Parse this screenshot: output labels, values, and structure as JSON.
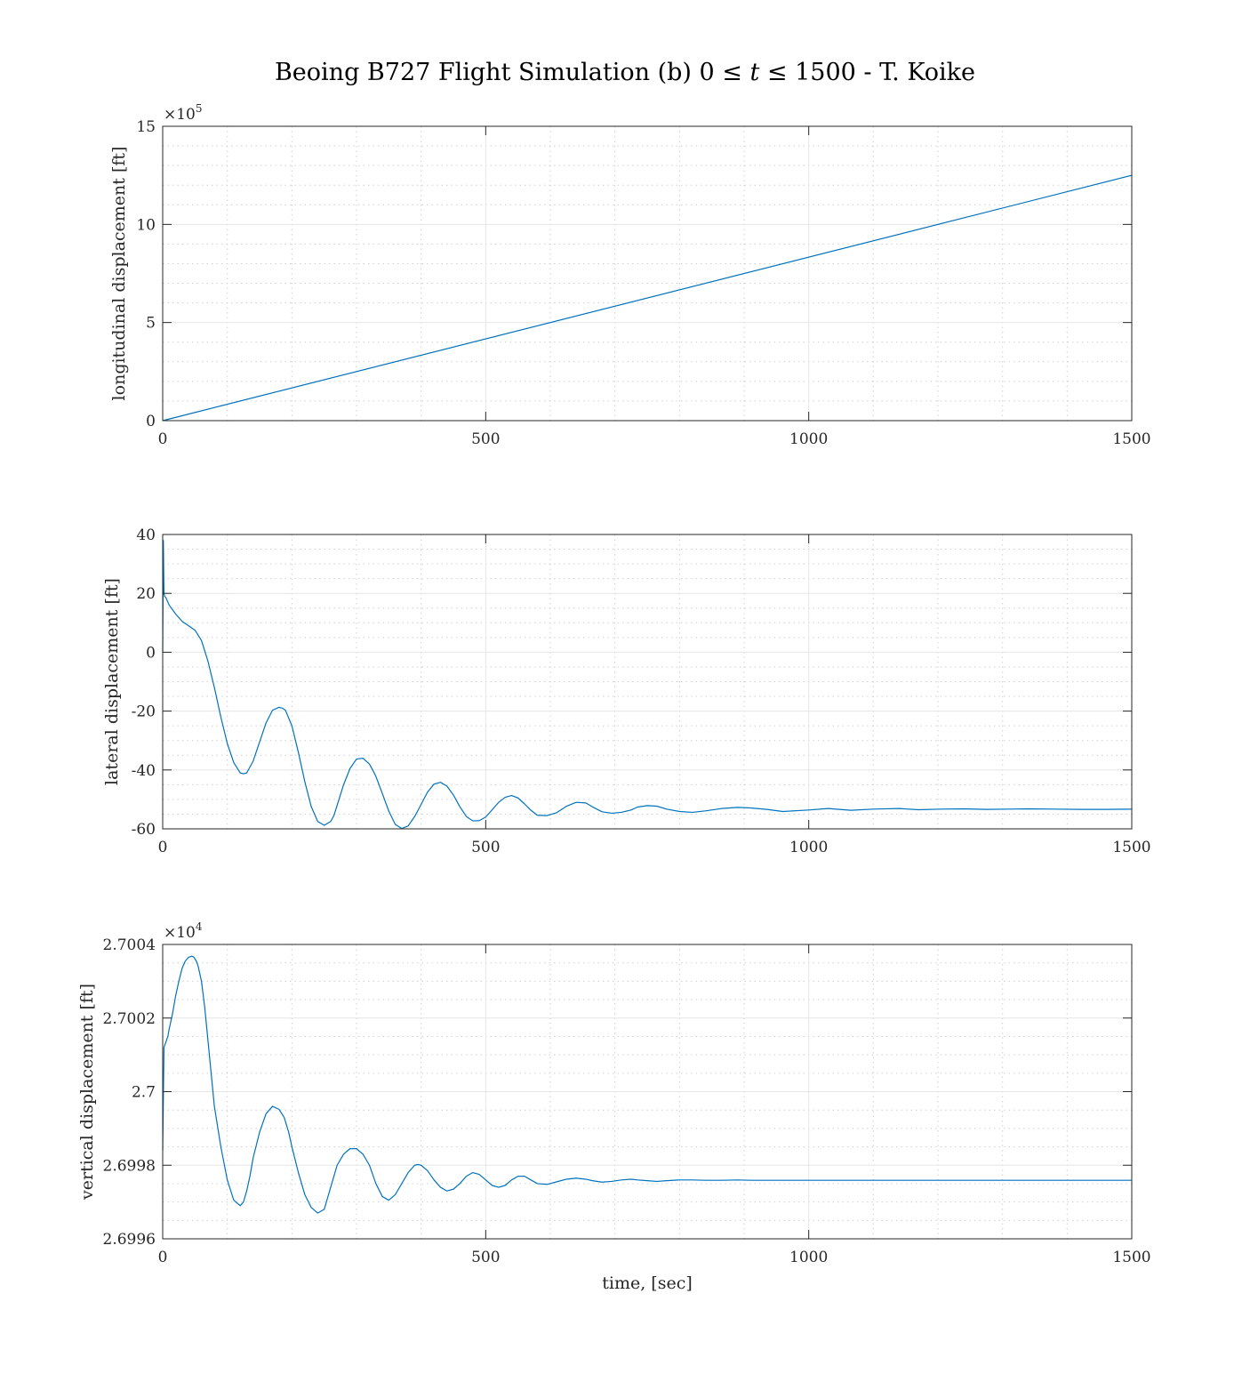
{
  "figure": {
    "title_pre": "Beoing B727 Flight Simulation (b) 0 ≤ ",
    "title_var": "t",
    "title_post": " ≤ 1500 - T. Koike",
    "line_color": "#0072BD",
    "grid_color": "#e6e6e6"
  },
  "chart_data": [
    {
      "type": "line",
      "title": "",
      "xlabel": "",
      "ylabel": "longitudinal displacement [ft]",
      "xlim": [
        0,
        1500
      ],
      "ylim": [
        0,
        1500000
      ],
      "x_ticks": [
        0,
        500,
        1000,
        1500
      ],
      "x_tick_labels": [
        "0",
        "500",
        "1000",
        "1500"
      ],
      "y_ticks": [
        0,
        500000,
        1000000,
        1500000
      ],
      "y_tick_labels": [
        "0",
        "5",
        "10",
        "15"
      ],
      "exponent_label_base": "×10",
      "exponent_label_power": "5",
      "grid": true,
      "minor_grid": true,
      "series": [
        {
          "x": [
            0,
            1500
          ],
          "y": [
            0,
            1250000
          ]
        }
      ]
    },
    {
      "type": "line",
      "title": "",
      "xlabel": "",
      "ylabel": "lateral displacement [ft]",
      "xlim": [
        0,
        1500
      ],
      "ylim": [
        -60,
        40
      ],
      "x_ticks": [
        0,
        500,
        1000,
        1500
      ],
      "x_tick_labels": [
        "0",
        "500",
        "1000",
        "1500"
      ],
      "y_ticks": [
        -60,
        -40,
        -20,
        0,
        20,
        40
      ],
      "y_tick_labels": [
        "-60",
        "-40",
        "-20",
        "0",
        "20",
        "40"
      ],
      "exponent_label_base": "",
      "exponent_label_power": "",
      "grid": true,
      "minor_grid": true,
      "series": [
        {
          "x": [
            0,
            1,
            2,
            3,
            5,
            10,
            20,
            30,
            40,
            50,
            60,
            70,
            80,
            90,
            100,
            110,
            120,
            125,
            130,
            140,
            150,
            160,
            170,
            180,
            185,
            190,
            200,
            210,
            220,
            230,
            240,
            250,
            260,
            265,
            270,
            280,
            290,
            300,
            310,
            320,
            325,
            330,
            340,
            350,
            360,
            370,
            380,
            390,
            395,
            400,
            410,
            420,
            430,
            440,
            450,
            460,
            470,
            480,
            490,
            500,
            510,
            520,
            530,
            540,
            550,
            560,
            570,
            580,
            595,
            610,
            625,
            640,
            655,
            665,
            680,
            695,
            710,
            725,
            735,
            750,
            765,
            780,
            800,
            820,
            840,
            865,
            890,
            910,
            935,
            960,
            1000,
            1030,
            1065,
            1100,
            1140,
            1170,
            1205,
            1240,
            1275,
            1310,
            1340,
            1380,
            1420,
            1460,
            1500
          ],
          "y": [
            0,
            38,
            20,
            19,
            18.5,
            16,
            13,
            10.5,
            9,
            7.5,
            4,
            -3,
            -12,
            -22,
            -31,
            -37.5,
            -41,
            -41.3,
            -41,
            -37,
            -30.5,
            -24,
            -19.7,
            -18.7,
            -19,
            -19.7,
            -25,
            -34,
            -44,
            -52.5,
            -57.5,
            -58.8,
            -57.5,
            -55.5,
            -52,
            -45,
            -39.5,
            -36.3,
            -36,
            -38,
            -40,
            -42.2,
            -48,
            -54,
            -58.5,
            -59.9,
            -59,
            -55.8,
            -53.8,
            -51.7,
            -47.5,
            -44.8,
            -44.2,
            -45.5,
            -48.5,
            -52.5,
            -55.8,
            -57.3,
            -57.2,
            -56,
            -53.5,
            -51,
            -49.3,
            -48.7,
            -49.5,
            -51.5,
            -53.7,
            -55.4,
            -55.5,
            -54.5,
            -52.3,
            -51,
            -51.2,
            -52.5,
            -54.2,
            -54.7,
            -54.4,
            -53.6,
            -52.6,
            -52.1,
            -52.3,
            -53.3,
            -54.1,
            -54.4,
            -53.9,
            -53.1,
            -52.7,
            -52.9,
            -53.4,
            -54.1,
            -53.6,
            -53.1,
            -53.7,
            -53.3,
            -53.1,
            -53.5,
            -53.3,
            -53.2,
            -53.4,
            -53.3,
            -53.2,
            -53.3,
            -53.4,
            -53.4,
            -53.3
          ]
        }
      ]
    },
    {
      "type": "line",
      "title": "",
      "xlabel": "time, [sec]",
      "ylabel": "vertical displacement [ft]",
      "xlim": [
        0,
        1500
      ],
      "ylim": [
        26996,
        27004
      ],
      "x_ticks": [
        0,
        500,
        1000,
        1500
      ],
      "x_tick_labels": [
        "0",
        "500",
        "1000",
        "1500"
      ],
      "y_ticks": [
        26996,
        26998,
        27000,
        27002,
        27004
      ],
      "y_tick_labels": [
        "2.6996",
        "2.6998",
        "2.7",
        "2.7002",
        "2.7004"
      ],
      "exponent_label_base": "×10",
      "exponent_label_power": "4",
      "grid": true,
      "minor_grid": true,
      "series": [
        {
          "x": [
            0,
            2,
            4,
            6,
            8,
            10,
            15,
            20,
            25,
            30,
            35,
            40,
            45,
            48,
            52,
            55,
            60,
            65,
            70,
            75,
            80,
            90,
            100,
            110,
            120,
            125,
            130,
            135,
            140,
            150,
            160,
            170,
            180,
            188,
            195,
            200,
            210,
            220,
            230,
            240,
            250,
            255,
            260,
            265,
            270,
            280,
            290,
            300,
            310,
            320,
            325,
            330,
            340,
            350,
            360,
            370,
            380,
            390,
            395,
            400,
            410,
            420,
            430,
            440,
            450,
            460,
            470,
            480,
            490,
            500,
            510,
            520,
            530,
            540,
            550,
            560,
            570,
            580,
            595,
            610,
            625,
            640,
            655,
            665,
            680,
            695,
            710,
            725,
            735,
            750,
            765,
            780,
            800,
            820,
            840,
            865,
            890,
            910,
            935,
            960,
            1000,
            1030,
            1065,
            1100,
            1140,
            1170,
            1205,
            1240,
            1275,
            1310,
            1340,
            1380,
            1420,
            1460,
            1500
          ],
          "y": [
            26998.4,
            27001.2,
            27001.3,
            27001.4,
            27001.5,
            27001.7,
            27002.1,
            27002.6,
            27003.0,
            27003.35,
            27003.55,
            27003.65,
            27003.68,
            27003.66,
            27003.55,
            27003.4,
            27003.0,
            27002.3,
            27001.4,
            27000.5,
            26999.6,
            26998.5,
            26997.6,
            26997.05,
            26996.9,
            26997.0,
            26997.3,
            26997.7,
            26998.2,
            26998.9,
            26999.4,
            26999.6,
            26999.52,
            26999.3,
            26998.9,
            26998.5,
            26997.8,
            26997.2,
            26996.85,
            26996.7,
            26996.8,
            26997.1,
            26997.4,
            26997.7,
            26998.0,
            26998.3,
            26998.45,
            26998.45,
            26998.3,
            26998.0,
            26997.75,
            26997.5,
            26997.15,
            26997.05,
            26997.2,
            26997.5,
            26997.8,
            26998.0,
            26998.02,
            26998.0,
            26997.85,
            26997.6,
            26997.4,
            26997.3,
            26997.35,
            26997.5,
            26997.7,
            26997.8,
            26997.75,
            26997.6,
            26997.45,
            26997.4,
            26997.45,
            26997.6,
            26997.7,
            26997.7,
            26997.6,
            26997.5,
            26997.48,
            26997.55,
            26997.62,
            26997.65,
            26997.62,
            26997.58,
            26997.54,
            26997.56,
            26997.6,
            26997.62,
            26997.6,
            26997.58,
            26997.56,
            26997.58,
            26997.6,
            26997.6,
            26997.59,
            26997.59,
            26997.6,
            26997.59,
            26997.59,
            26997.59,
            26997.59,
            26997.59,
            26997.59,
            26997.59,
            26997.59,
            26997.59,
            26997.59,
            26997.59,
            26997.59,
            26997.59,
            26997.59,
            26997.59,
            26997.59,
            26997.59,
            26997.59
          ]
        }
      ]
    }
  ]
}
